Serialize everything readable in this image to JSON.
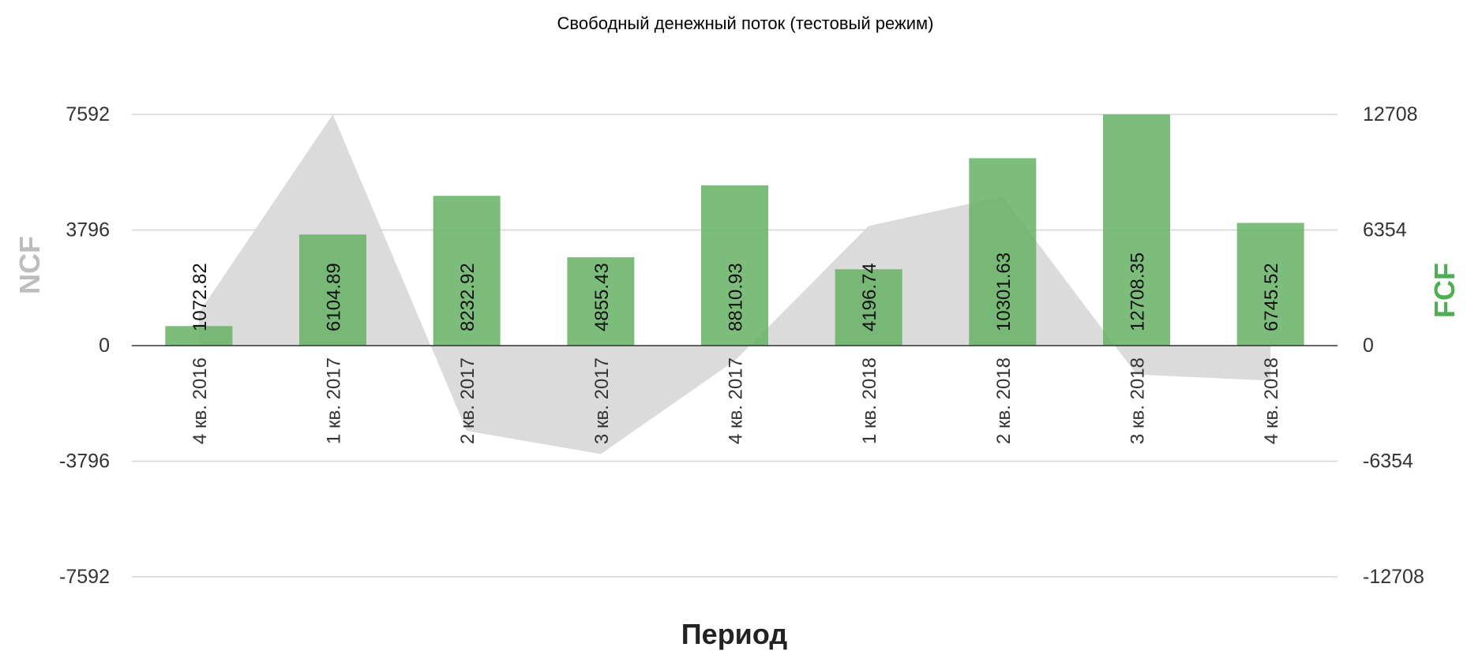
{
  "chart_data": {
    "type": "bar",
    "title": "Свободный денежный поток (тестовый режим)",
    "xlabel": "Период",
    "categories": [
      "4 кв. 2016",
      "1 кв. 2017",
      "2 кв. 2017",
      "3 кв. 2017",
      "4 кв. 2017",
      "1 кв. 2018",
      "2 кв. 2018",
      "3 кв. 2018",
      "4 кв. 2018"
    ],
    "left_axis": {
      "label": "NCF",
      "color": "#bdbdbd",
      "ticks": [
        7592,
        3796,
        0,
        -3796,
        -7592
      ],
      "ylim": [
        -7592,
        7592
      ]
    },
    "right_axis": {
      "label": "FCF",
      "color": "#4caf50",
      "ticks": [
        12708,
        6354,
        0,
        -6354,
        -12708
      ],
      "ylim": [
        -12708,
        12708
      ]
    },
    "series": [
      {
        "name": "NCF",
        "type": "area",
        "axis": "left",
        "color": "#d9d9d9",
        "values": [
          1072.82,
          7592,
          -2800,
          -3560,
          -500,
          3930,
          4900,
          -950,
          -1150
        ]
      },
      {
        "name": "FCF",
        "type": "bar",
        "axis": "right",
        "color": "#66b266",
        "values": [
          1072.82,
          6104.89,
          8232.92,
          4855.43,
          8810.93,
          4196.74,
          10301.63,
          12708.35,
          6745.52
        ],
        "labels": [
          "1072.82",
          "6104.89",
          "8232.92",
          "4855.43",
          "8810.93",
          "4196.74",
          "10301.63",
          "12708.35",
          "6745.52"
        ]
      }
    ],
    "grid": true,
    "legend": "none"
  }
}
